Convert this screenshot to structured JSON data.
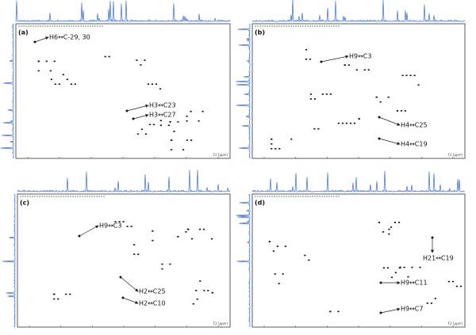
{
  "panels": [
    {
      "label": "(a)",
      "axis_label": "F2 [ppm]",
      "annotations": [
        "H6↔C-29, 30",
        "H3↔C23",
        "H3↔C27"
      ]
    },
    {
      "label": "(b)",
      "axis_label": "F2 [ppm]",
      "annotations": [
        "H9↔C3",
        "H4↔C25",
        "H4↔C19"
      ]
    },
    {
      "label": "(c)",
      "axis_label": "F2 [ppm]",
      "annotations": [
        "H9↔C3",
        "H2↔C25",
        "H2↔C10"
      ]
    },
    {
      "label": "(d)",
      "axis_label": "F2 [ppm]",
      "annotations": [
        "H21↔C19",
        "H9↔C11",
        "H9↔C7"
      ]
    }
  ]
}
